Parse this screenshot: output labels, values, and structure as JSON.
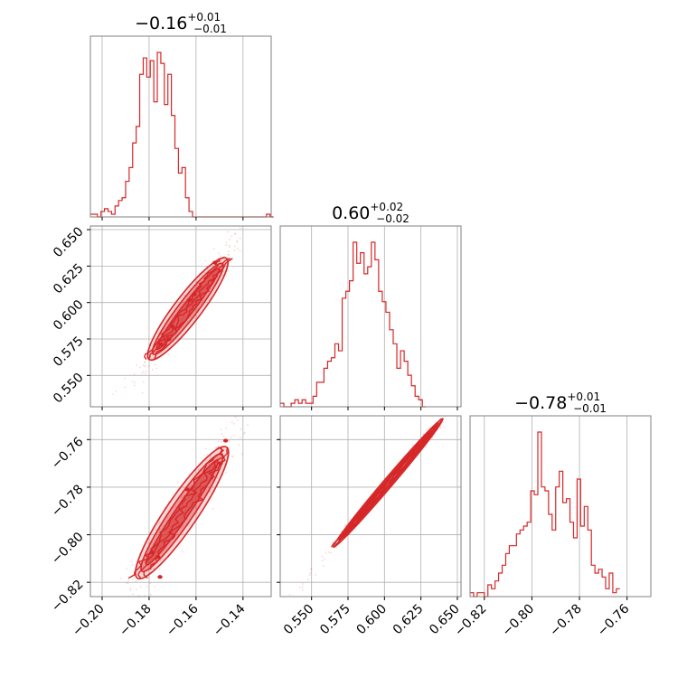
{
  "chart_data": {
    "type": "corner",
    "color": "#d62728",
    "parameters": [
      {
        "index": 0,
        "range": [
          -0.205,
          -0.128
        ],
        "ticks": [
          -0.2,
          -0.18,
          -0.16,
          -0.14
        ],
        "tick_labels": [
          "−0.20",
          "−0.18",
          "−0.16",
          "−0.14"
        ],
        "title_value": "−0.16",
        "title_plus": "+0.01",
        "title_minus": "−0.01",
        "histogram": {
          "edges_start": -0.205,
          "bin_width": 0.0015,
          "counts": [
            1,
            1,
            0,
            2,
            3,
            2,
            1,
            4,
            6,
            7,
            13,
            18,
            27,
            33,
            52,
            58,
            51,
            57,
            42,
            60,
            56,
            41,
            52,
            37,
            25,
            16,
            18,
            7,
            2,
            0,
            0,
            0,
            0,
            0,
            0,
            0,
            0,
            0,
            0,
            0,
            0,
            0,
            0,
            0,
            0,
            0,
            0,
            0,
            0,
            0,
            1,
            0
          ]
        }
      },
      {
        "index": 1,
        "range": [
          0.5285,
          0.6525
        ],
        "ticks": [
          0.55,
          0.575,
          0.6,
          0.625,
          0.65
        ],
        "tick_labels": [
          "0.550",
          "0.575",
          "0.600",
          "0.625",
          "0.650"
        ],
        "title_value": "0.60",
        "title_plus": "+0.02",
        "title_minus": "−0.02",
        "histogram": {
          "edges_start": 0.5285,
          "bin_width": 0.0025,
          "counts": [
            1,
            0,
            0,
            1,
            2,
            1,
            2,
            1,
            1,
            3,
            7,
            7,
            11,
            13,
            14,
            18,
            16,
            31,
            33,
            36,
            47,
            41,
            44,
            38,
            40,
            47,
            42,
            33,
            30,
            27,
            22,
            18,
            11,
            16,
            13,
            9,
            6,
            3,
            2,
            0
          ]
        }
      },
      {
        "index": 2,
        "range": [
          -0.826,
          -0.75
        ],
        "ticks": [
          -0.82,
          -0.8,
          -0.78,
          -0.76
        ],
        "tick_labels": [
          "−0.82",
          "−0.80",
          "−0.78",
          "−0.76"
        ],
        "title_value": "−0.78",
        "title_plus": "+0.01",
        "title_minus": "−0.01",
        "histogram": {
          "edges_start": -0.826,
          "bin_width": 0.0015,
          "counts": [
            1,
            0,
            1,
            1,
            0,
            3,
            2,
            4,
            6,
            8,
            11,
            13,
            13,
            16,
            17,
            18,
            19,
            27,
            26,
            42,
            28,
            27,
            21,
            17,
            28,
            32,
            24,
            25,
            19,
            15,
            30,
            18,
            23,
            17,
            8,
            6,
            7,
            5,
            2,
            6,
            1,
            2
          ]
        }
      }
    ],
    "pairs": [
      {
        "x_param": 0,
        "y_param": 1,
        "relation": "linear",
        "slope": 2.1,
        "intercept": 0.939,
        "spread_sigma_x": 0.0022,
        "core_range_x": [
          -0.18,
          -0.147
        ]
      },
      {
        "x_param": 0,
        "y_param": 2,
        "relation": "linear",
        "slope": 1.45,
        "intercept": -0.55,
        "spread_sigma_x": 0.0026,
        "core_range_x": [
          -0.185,
          -0.147
        ]
      },
      {
        "x_param": 1,
        "y_param": 2,
        "relation": "linear",
        "slope": 0.72,
        "intercept": -1.212,
        "spread_sigma_x": 0.0012,
        "core_range_x": [
          0.565,
          0.64
        ]
      }
    ]
  }
}
